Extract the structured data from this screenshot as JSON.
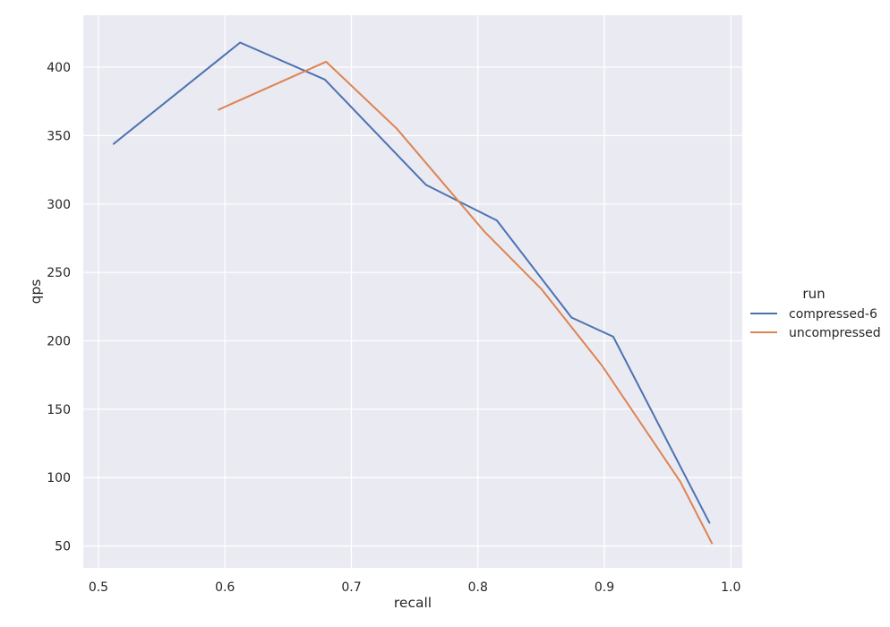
{
  "chart_data": {
    "type": "line",
    "title": "",
    "xlabel": "recall",
    "ylabel": "qps",
    "xlim": [
      0.488,
      1.009
    ],
    "ylim": [
      34,
      438
    ],
    "xticks": [
      0.5,
      0.6,
      0.7,
      0.8,
      0.9,
      1.0
    ],
    "xtick_labels": [
      "0.5",
      "0.6",
      "0.7",
      "0.8",
      "0.9",
      "1.0"
    ],
    "yticks": [
      50,
      100,
      150,
      200,
      250,
      300,
      350,
      400
    ],
    "ytick_labels": [
      "50",
      "100",
      "150",
      "200",
      "250",
      "300",
      "350",
      "400"
    ],
    "grid": true,
    "background": "#EAEAF2",
    "legend": {
      "title": "run",
      "placement": "outside-right"
    },
    "series": [
      {
        "name": "compressed-6",
        "color": "#4C72B0",
        "x": [
          0.512,
          0.612,
          0.679,
          0.759,
          0.815,
          0.874,
          0.907,
          0.983
        ],
        "y": [
          344,
          418,
          391,
          314,
          288,
          217,
          203,
          67
        ]
      },
      {
        "name": "uncompressed",
        "color": "#DD8452",
        "x": [
          0.595,
          0.68,
          0.736,
          0.805,
          0.85,
          0.898,
          0.96,
          0.985
        ],
        "y": [
          369,
          404,
          355,
          280,
          238,
          182,
          97,
          52
        ]
      }
    ]
  }
}
